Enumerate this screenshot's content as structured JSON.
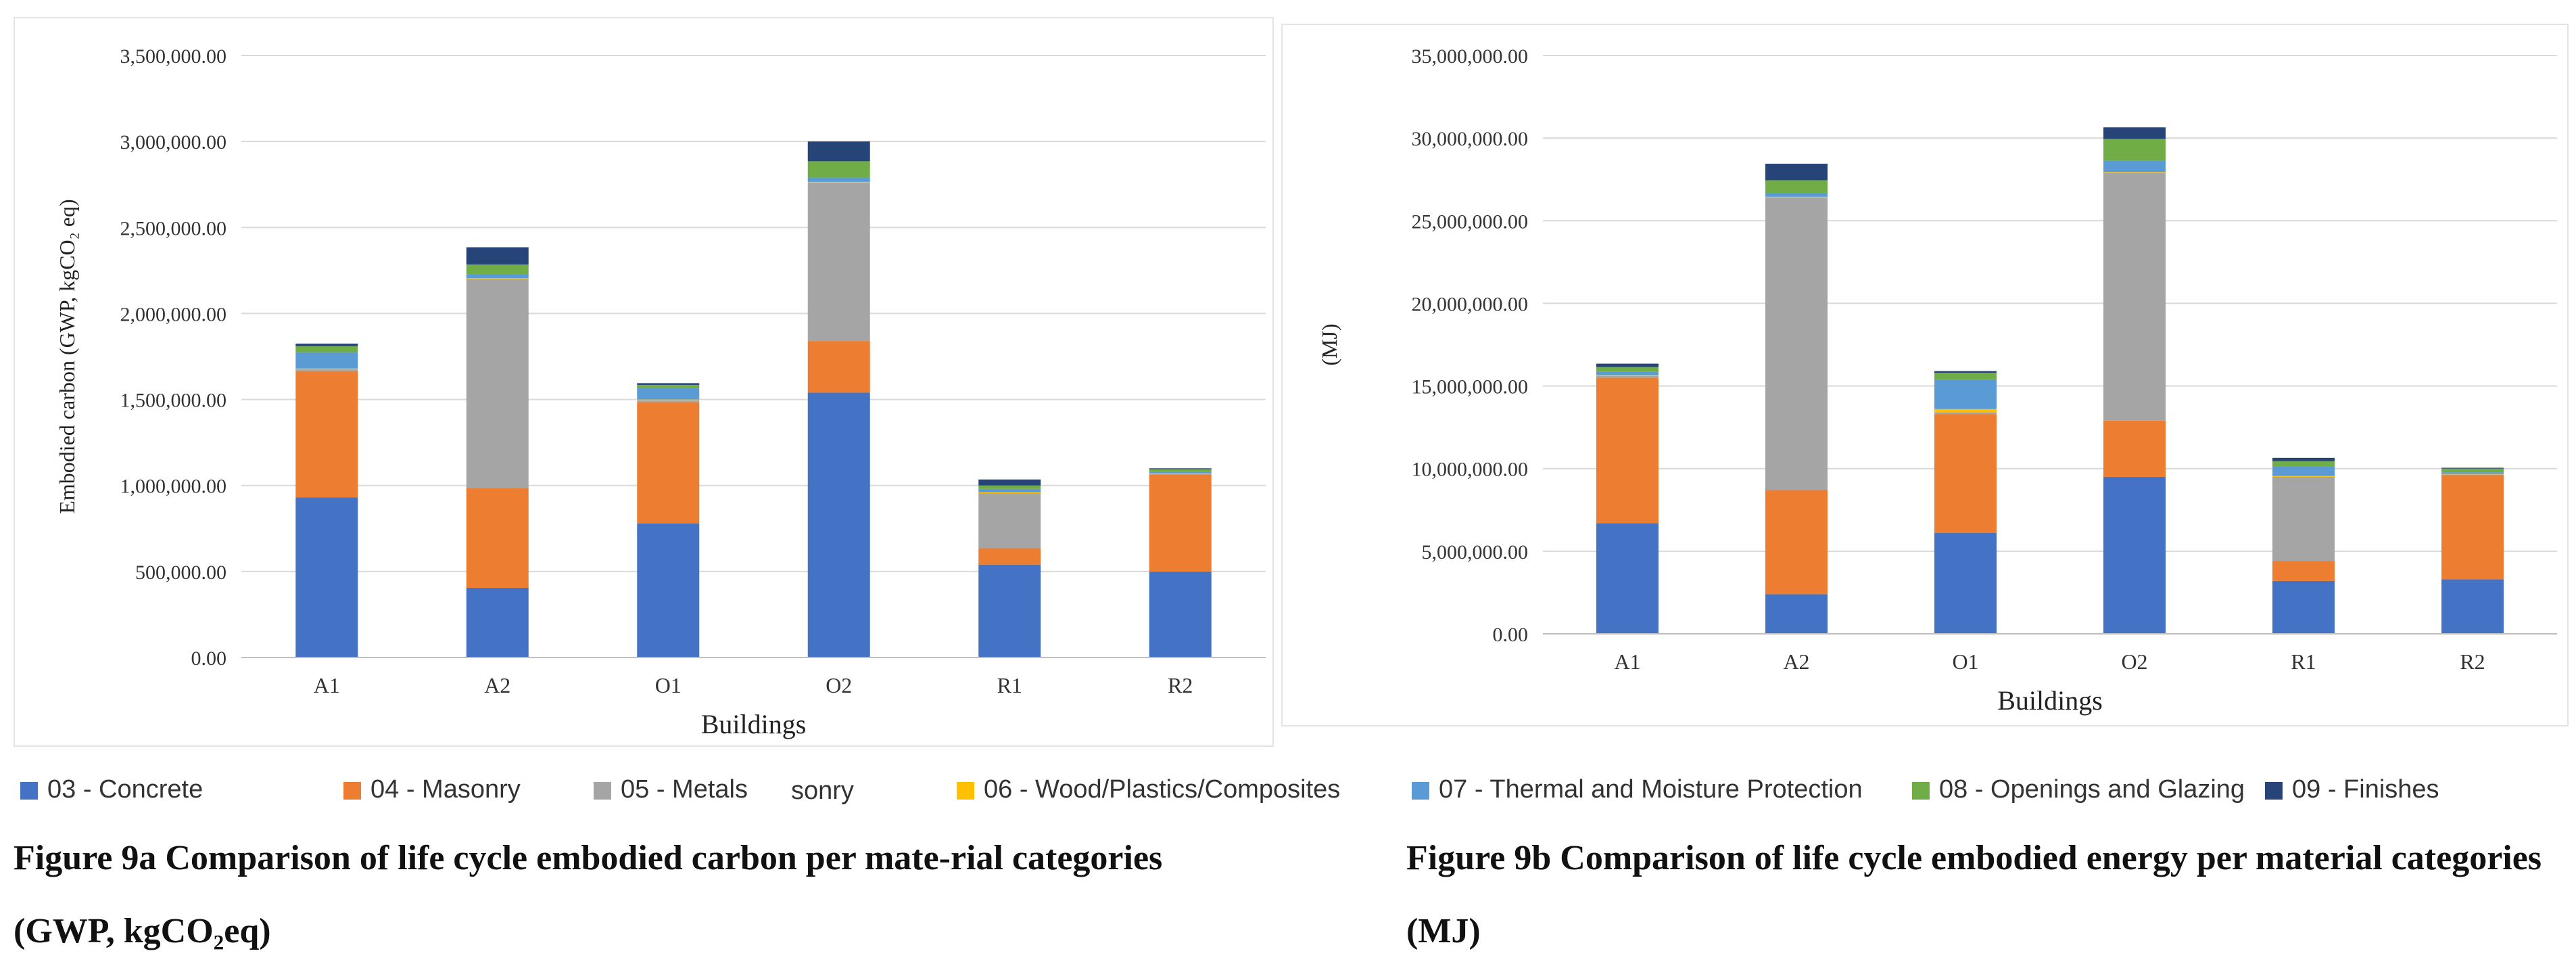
{
  "colors": {
    "concrete": "#4472C4",
    "masonry": "#ED7D31",
    "metals": "#A5A5A5",
    "wood": "#FFC000",
    "thermal": "#5B9BD5",
    "openings": "#70AD47",
    "finishes": "#264478",
    "gridline": "#d9d9d9",
    "axis_text": "#333333"
  },
  "legend": {
    "items": [
      {
        "label": "03 - Concrete",
        "color": "#4472C4"
      },
      {
        "label": "04 - Masonry",
        "color": "#ED7D31"
      },
      {
        "label": "05 - Metals",
        "color": "#A5A5A5"
      },
      {
        "label": "06 - Wood/Plastics/Composites",
        "color": "#FFC000"
      },
      {
        "label": "07 - Thermal and Moisture Protection",
        "color": "#5B9BD5"
      },
      {
        "label": "08 - Openings and Glazing",
        "color": "#70AD47"
      },
      {
        "label": "09 - Finishes",
        "color": "#264478"
      }
    ],
    "stray_text": "sonry"
  },
  "captions": {
    "a": "Figure 9a Comparison of life cycle embodied carbon per mate-rial categories (GWP, kgCO₂eq)",
    "b": "Figure 9b Comparison of life cycle embodied energy per material categories (MJ)"
  },
  "chart_data": [
    {
      "type": "bar",
      "stacked": true,
      "title": "",
      "xlabel": "Buildings",
      "ylabel": "Embodied carbon (GWP, kgCO₂ eq)",
      "ylim": [
        0,
        3500000
      ],
      "ytick_step": 500000,
      "yticks": [
        "0.00",
        "500,000.00",
        "1,000,000.00",
        "1,500,000.00",
        "2,000,000.00",
        "2,500,000.00",
        "3,000,000.00",
        "3,500,000.00"
      ],
      "categories": [
        "A1",
        "A2",
        "O1",
        "O2",
        "R1",
        "R2"
      ],
      "series": [
        {
          "name": "03 - Concrete",
          "color": "#4472C4",
          "values": [
            930000,
            405000,
            780000,
            1540000,
            540000,
            500000
          ]
        },
        {
          "name": "04 - Masonry",
          "color": "#ED7D31",
          "values": [
            735000,
            580000,
            705000,
            300000,
            95000,
            565000
          ]
        },
        {
          "name": "05 - Metals",
          "color": "#A5A5A5",
          "values": [
            10000,
            1215000,
            10000,
            920000,
            320000,
            5000
          ]
        },
        {
          "name": "06 - Wood/Plastics/Composites",
          "color": "#FFC000",
          "values": [
            5000,
            5000,
            5000,
            5000,
            5000,
            2000
          ]
        },
        {
          "name": "07 - Thermal and Moisture Protection",
          "color": "#5B9BD5",
          "values": [
            95000,
            25000,
            65000,
            25000,
            20000,
            8000
          ]
        },
        {
          "name": "08 - Openings and Glazing",
          "color": "#70AD47",
          "values": [
            35000,
            55000,
            20000,
            95000,
            20000,
            15000
          ]
        },
        {
          "name": "09 - Finishes",
          "color": "#264478",
          "values": [
            15000,
            100000,
            10000,
            115000,
            35000,
            5000
          ]
        }
      ]
    },
    {
      "type": "bar",
      "stacked": true,
      "title": "",
      "xlabel": "Buildings",
      "ylabel": "(MJ)",
      "ylim": [
        0,
        35000000
      ],
      "ytick_step": 5000000,
      "yticks": [
        "0.00",
        "5,000,000.00",
        "10,000,000.00",
        "15,000,000.00",
        "20,000,000.00",
        "25,000,000.00",
        "30,000,000.00",
        "35,000,000.00"
      ],
      "categories": [
        "A1",
        "A2",
        "O1",
        "O2",
        "R1",
        "R2"
      ],
      "series": [
        {
          "name": "03 - Concrete",
          "color": "#4472C4",
          "values": [
            6700000,
            2400000,
            6100000,
            9500000,
            3200000,
            3300000
          ]
        },
        {
          "name": "04 - Masonry",
          "color": "#ED7D31",
          "values": [
            8800000,
            6300000,
            7200000,
            3400000,
            1200000,
            6300000
          ]
        },
        {
          "name": "05 - Metals",
          "color": "#A5A5A5",
          "values": [
            100000,
            17700000,
            100000,
            15000000,
            5100000,
            50000
          ]
        },
        {
          "name": "06 - Wood/Plastics/Composites",
          "color": "#FFC000",
          "values": [
            50000,
            50000,
            200000,
            50000,
            50000,
            30000
          ]
        },
        {
          "name": "07 - Thermal and Moisture Protection",
          "color": "#5B9BD5",
          "values": [
            200000,
            200000,
            1800000,
            700000,
            600000,
            100000
          ]
        },
        {
          "name": "08 - Openings and Glazing",
          "color": "#70AD47",
          "values": [
            300000,
            800000,
            400000,
            1300000,
            300000,
            220000
          ]
        },
        {
          "name": "09 - Finishes",
          "color": "#264478",
          "values": [
            200000,
            1000000,
            100000,
            700000,
            200000,
            50000
          ]
        }
      ]
    }
  ]
}
